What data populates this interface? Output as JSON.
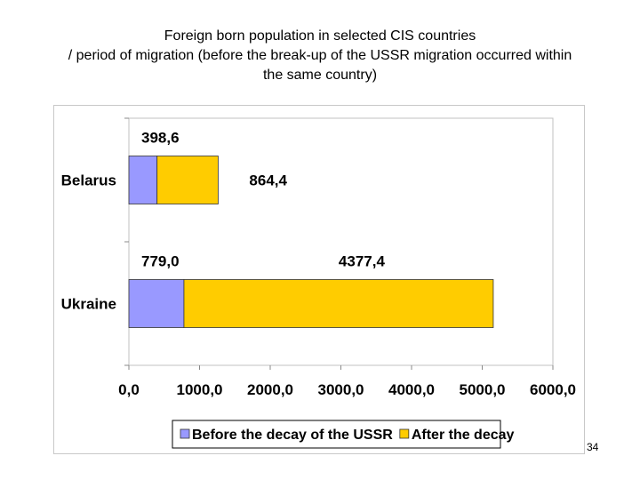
{
  "slide": {
    "title_line1": "Foreign born population in selected CIS countries",
    "title_line2": "/ period of migration (before the break-up  of the USSR migration occurred within",
    "title_line3": "the same country)",
    "page_number": "34"
  },
  "chart_data": {
    "type": "bar",
    "orientation": "horizontal",
    "stacked": true,
    "categories": [
      "Belarus",
      "Ukraine"
    ],
    "series": [
      {
        "name": "Before the decay of the USSR",
        "values": [
          398.6,
          779.0
        ],
        "labels": [
          "398,6",
          "779,0"
        ],
        "color": "#9999ff"
      },
      {
        "name": "After the decay",
        "values": [
          864.4,
          4377.4
        ],
        "labels": [
          "864,4",
          "4377,4"
        ],
        "color": "#ffcc00"
      }
    ],
    "xlim": [
      0,
      6000
    ],
    "xticks": [
      0,
      1000,
      2000,
      3000,
      4000,
      5000,
      6000
    ],
    "xtick_labels": [
      "0,0",
      "1000,0",
      "2000,0",
      "3000,0",
      "4000,0",
      "5000,0",
      "6000,0"
    ],
    "grid": false,
    "legend_position": "bottom"
  }
}
